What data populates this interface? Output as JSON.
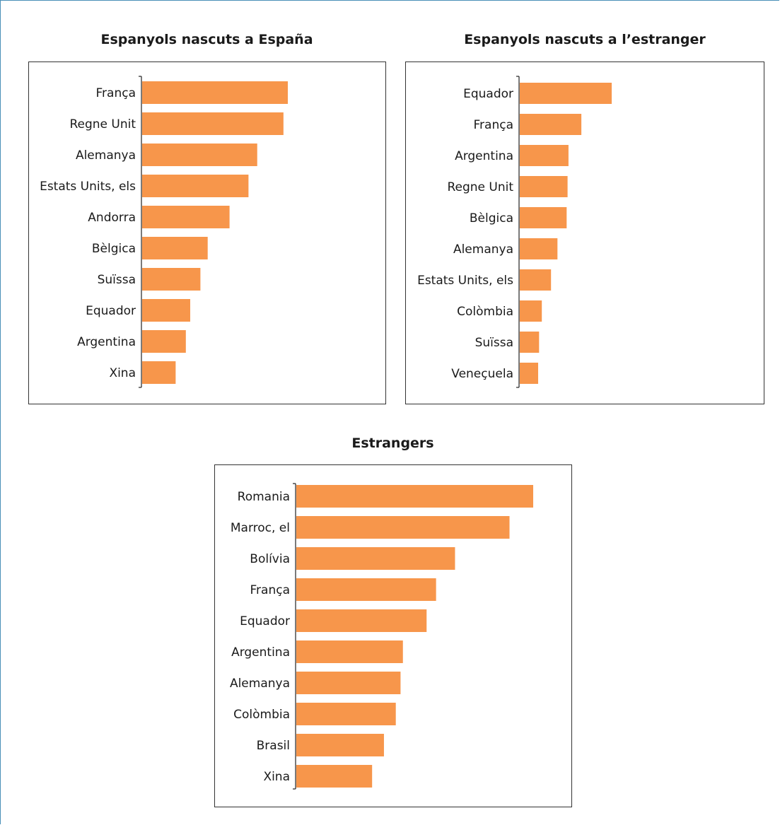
{
  "colors": {
    "bar": "#f7964b",
    "axis": "#222222",
    "label": "#1a1a1a"
  },
  "chart_data": [
    {
      "type": "bar",
      "orientation": "horizontal",
      "title": "Espanyols nascuts a España",
      "categories": [
        "França",
        "Regne Unit",
        "Alemanya",
        "Estats Units, els",
        "Andorra",
        "Bèlgica",
        "Suïssa",
        "Equador",
        "Argentina",
        "Xina"
      ],
      "values": [
        100,
        97,
        79,
        73,
        60,
        45,
        40,
        33,
        30,
        23
      ],
      "xlim": [
        0,
        100
      ],
      "grid": false
    },
    {
      "type": "bar",
      "orientation": "horizontal",
      "title": "Espanyols nascuts a l’estranger",
      "categories": [
        "Equador",
        "França",
        "Argentina",
        "Regne Unit",
        "Bèlgica",
        "Alemanya",
        "Estats Units, els",
        "Colòmbia",
        "Suïssa",
        "Veneçuela"
      ],
      "values": [
        100,
        67,
        53,
        52,
        51,
        41,
        34,
        24,
        21,
        20
      ],
      "xlim": [
        0,
        100
      ],
      "grid": false
    },
    {
      "type": "bar",
      "orientation": "horizontal",
      "title": "Estrangers",
      "categories": [
        "Romania",
        "Marroc, el",
        "Bolívia",
        "França",
        "Equador",
        "Argentina",
        "Alemanya",
        "Colòmbia",
        "Brasil",
        "Xina"
      ],
      "values": [
        100,
        90,
        67,
        59,
        55,
        45,
        44,
        42,
        37,
        32
      ],
      "xlim": [
        0,
        100
      ],
      "grid": false
    }
  ]
}
